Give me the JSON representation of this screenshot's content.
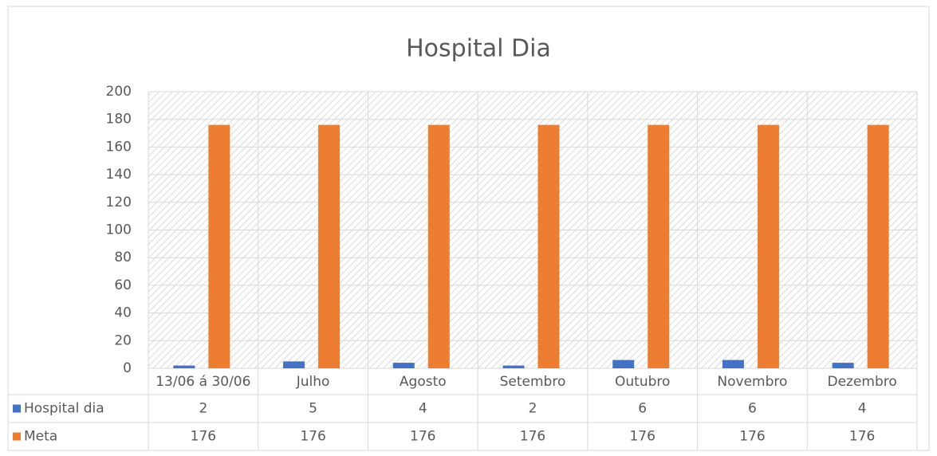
{
  "chart_data": {
    "type": "bar",
    "title": "Hospital Dia",
    "categories": [
      "13/06 á 30/06",
      "Julho",
      "Agosto",
      "Setembro",
      "Outubro",
      "Novembro",
      "Dezembro"
    ],
    "series": [
      {
        "name": "Hospital dia",
        "color": "#4472c4",
        "values": [
          2,
          5,
          4,
          2,
          6,
          6,
          4
        ]
      },
      {
        "name": "Meta",
        "color": "#ed7d31",
        "values": [
          176,
          176,
          176,
          176,
          176,
          176,
          176
        ]
      }
    ],
    "ylim": [
      0,
      200
    ],
    "yticks": [
      0,
      20,
      40,
      60,
      80,
      100,
      120,
      140,
      160,
      180,
      200
    ],
    "grid": true,
    "data_table": true
  }
}
